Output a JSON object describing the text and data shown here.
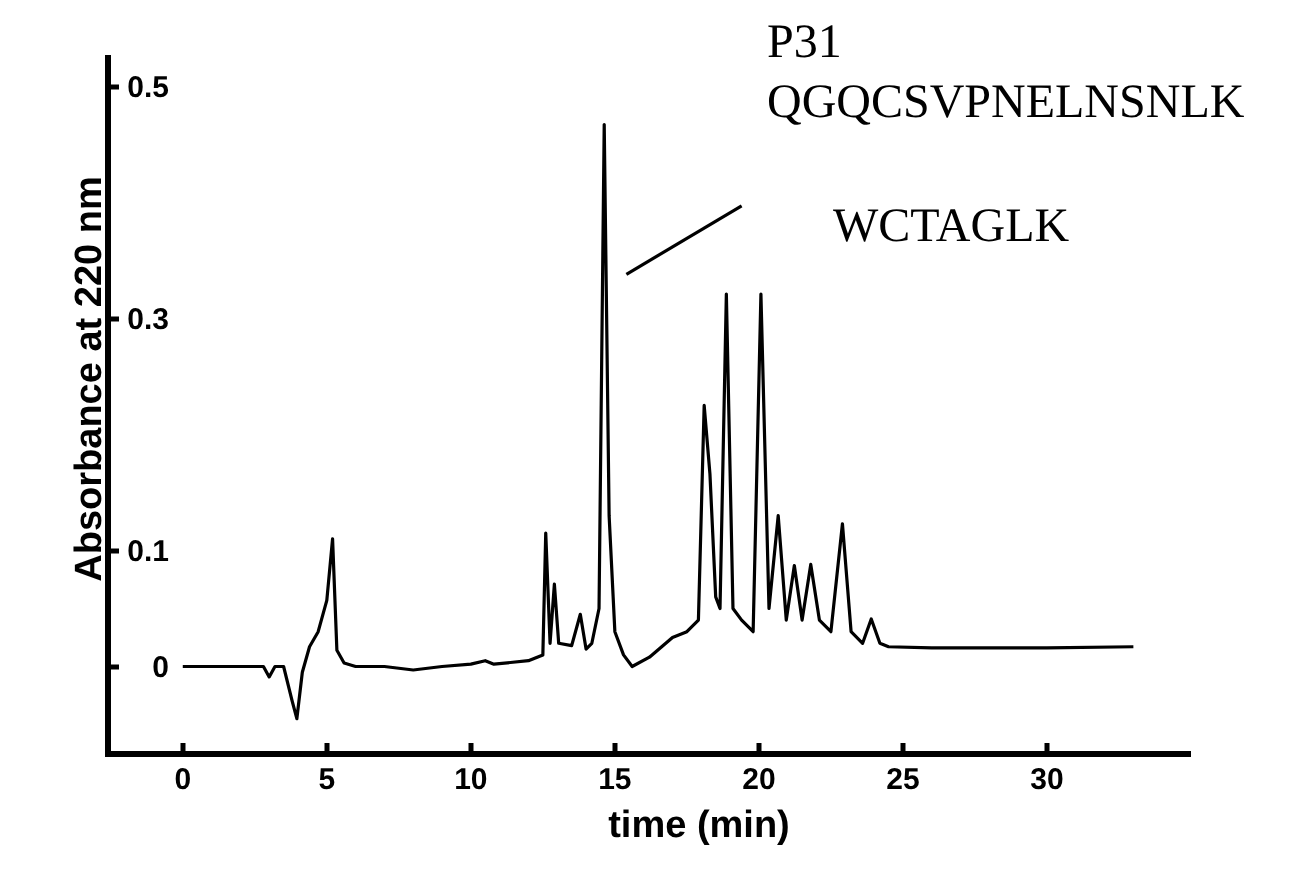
{
  "chart_data": {
    "type": "line",
    "xlabel": "time (min)",
    "ylabel": "Absorbance at 220 nm",
    "annotations": [
      "P31",
      "QGQCSVPNELNSNLK",
      "WCTAGLK"
    ],
    "xlim": [
      -2.7,
      35
    ],
    "ylim": [
      -0.078,
      0.527
    ],
    "xticks": [
      0,
      5,
      10,
      15,
      20,
      25,
      30
    ],
    "yticks": [
      0,
      0.1,
      0.3,
      0.5
    ],
    "grid": false,
    "marker": "none",
    "line_style": "solid",
    "series": [
      {
        "color": "#000000",
        "x": [
          0,
          2.8,
          3.0,
          3.2,
          3.5,
          3.8,
          3.96,
          4.15,
          4.4,
          4.7,
          5.0,
          5.2,
          5.35,
          5.6,
          6.0,
          7.0,
          8.0,
          9.0,
          10.0,
          10.5,
          10.8,
          12.0,
          12.5,
          12.6,
          12.75,
          12.9,
          13.05,
          13.5,
          13.8,
          14.0,
          14.2,
          14.45,
          14.63,
          14.8,
          15.0,
          15.3,
          15.6,
          16.2,
          17.0,
          17.5,
          17.9,
          18.1,
          18.3,
          18.5,
          18.65,
          18.87,
          19.1,
          19.4,
          19.8,
          20.07,
          20.35,
          20.67,
          20.95,
          21.23,
          21.5,
          21.8,
          22.1,
          22.5,
          22.9,
          23.2,
          23.6,
          23.9,
          24.2,
          24.5,
          26.0,
          30.0,
          33.0
        ],
        "values": [
          0,
          0,
          -0.009,
          0,
          0,
          -0.03,
          -0.045,
          -0.005,
          0.017,
          0.03,
          0.057,
          0.11,
          0.014,
          0.003,
          0,
          0,
          -0.003,
          0,
          0.002,
          0.005,
          0.002,
          0.005,
          0.01,
          0.115,
          0.02,
          0.071,
          0.02,
          0.018,
          0.045,
          0.015,
          0.02,
          0.05,
          0.467,
          0.13,
          0.03,
          0.01,
          0,
          0.008,
          0.025,
          0.03,
          0.04,
          0.225,
          0.166,
          0.06,
          0.05,
          0.321,
          0.05,
          0.04,
          0.03,
          0.321,
          0.05,
          0.13,
          0.04,
          0.087,
          0.04,
          0.088,
          0.04,
          0.03,
          0.123,
          0.03,
          0.02,
          0.041,
          0.02,
          0.017,
          0.016,
          0.016,
          0.017
        ]
      },
      {
        "color": "#000000",
        "x": [
          15.4,
          19.4
        ],
        "values": [
          0.338,
          0.397
        ]
      }
    ]
  }
}
